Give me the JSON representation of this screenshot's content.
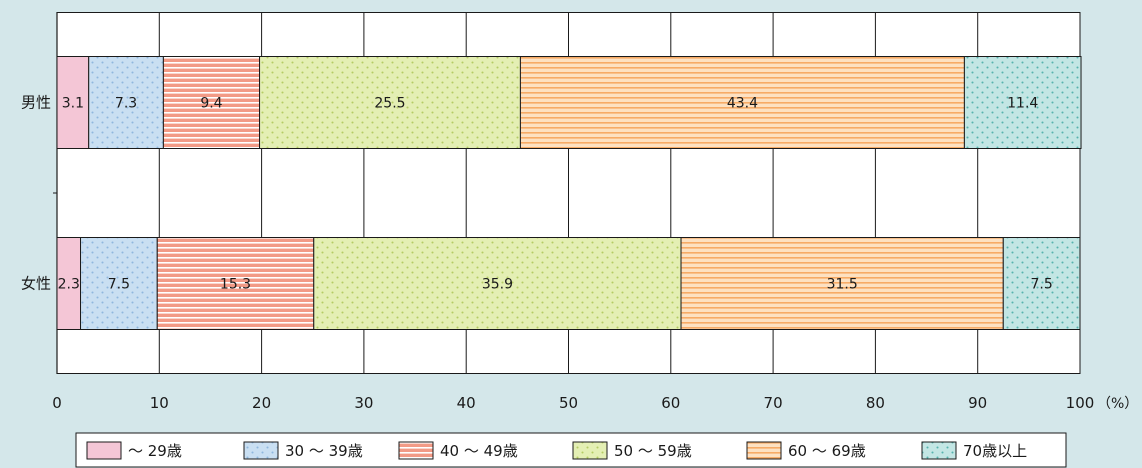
{
  "chart_data": {
    "type": "bar",
    "orientation": "horizontal",
    "stacked": true,
    "categories": [
      "男性",
      "女性"
    ],
    "series": [
      {
        "name": "～ 29歳",
        "values": [
          3.1,
          2.3
        ],
        "color": "#f4c6d6",
        "pattern": "plain"
      },
      {
        "name": "30 ～ 39歳",
        "values": [
          7.3,
          7.5
        ],
        "color": "#c9dff2",
        "pattern": "dots",
        "pattern_color": "#8fb7de"
      },
      {
        "name": "40 ～ 49歳",
        "values": [
          9.4,
          15.3
        ],
        "color": "#f29a86",
        "pattern": "hstripes",
        "pattern_color": "#ffffff"
      },
      {
        "name": "50 ～ 59歳",
        "values": [
          25.5,
          35.9
        ],
        "color": "#e4efb4",
        "pattern": "dots",
        "pattern_color": "#b4cc64"
      },
      {
        "name": "60 ～ 69歳",
        "values": [
          43.4,
          31.5
        ],
        "color": "#fde1c2",
        "pattern": "hstripes",
        "pattern_color": "#f7ab66"
      },
      {
        "name": "70歳以上",
        "values": [
          11.4,
          7.5
        ],
        "color": "#c3e6e4",
        "pattern": "dots",
        "pattern_color": "#56b3ae"
      }
    ],
    "xlim": [
      0,
      100
    ],
    "xticks": [
      "0",
      "10",
      "20",
      "30",
      "40",
      "50",
      "60",
      "70",
      "80",
      "90",
      "100"
    ],
    "unit": "（%）",
    "grid": true,
    "legend": "bottom"
  }
}
